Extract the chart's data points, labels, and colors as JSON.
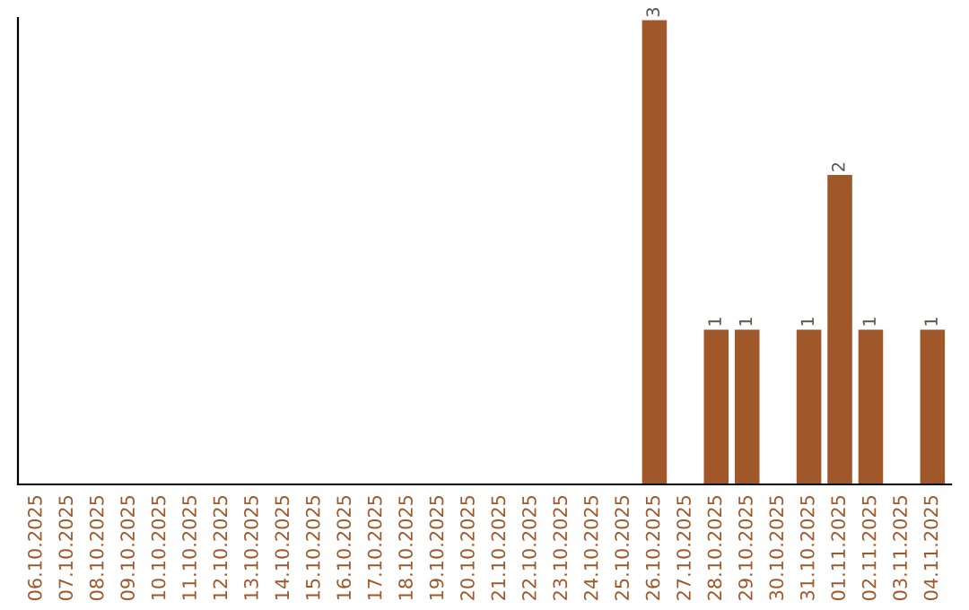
{
  "chart_data": {
    "type": "bar",
    "categories": [
      "06.10.2025",
      "07.10.2025",
      "08.10.2025",
      "09.10.2025",
      "10.10.2025",
      "11.10.2025",
      "12.10.2025",
      "13.10.2025",
      "14.10.2025",
      "15.10.2025",
      "16.10.2025",
      "17.10.2025",
      "18.10.2025",
      "19.10.2025",
      "20.10.2025",
      "21.10.2025",
      "22.10.2025",
      "23.10.2025",
      "24.10.2025",
      "25.10.2025",
      "26.10.2025",
      "27.10.2025",
      "28.10.2025",
      "29.10.2025",
      "30.10.2025",
      "31.10.2025",
      "01.11.2025",
      "02.11.2025",
      "03.11.2025",
      "04.11.2025"
    ],
    "values": [
      null,
      null,
      null,
      null,
      null,
      null,
      null,
      null,
      null,
      null,
      null,
      null,
      null,
      null,
      null,
      null,
      null,
      null,
      null,
      null,
      3,
      null,
      1,
      1,
      null,
      1,
      2,
      1,
      null,
      1
    ],
    "data_labels": true,
    "color": "#a0572a",
    "grid": false,
    "legend": false
  }
}
